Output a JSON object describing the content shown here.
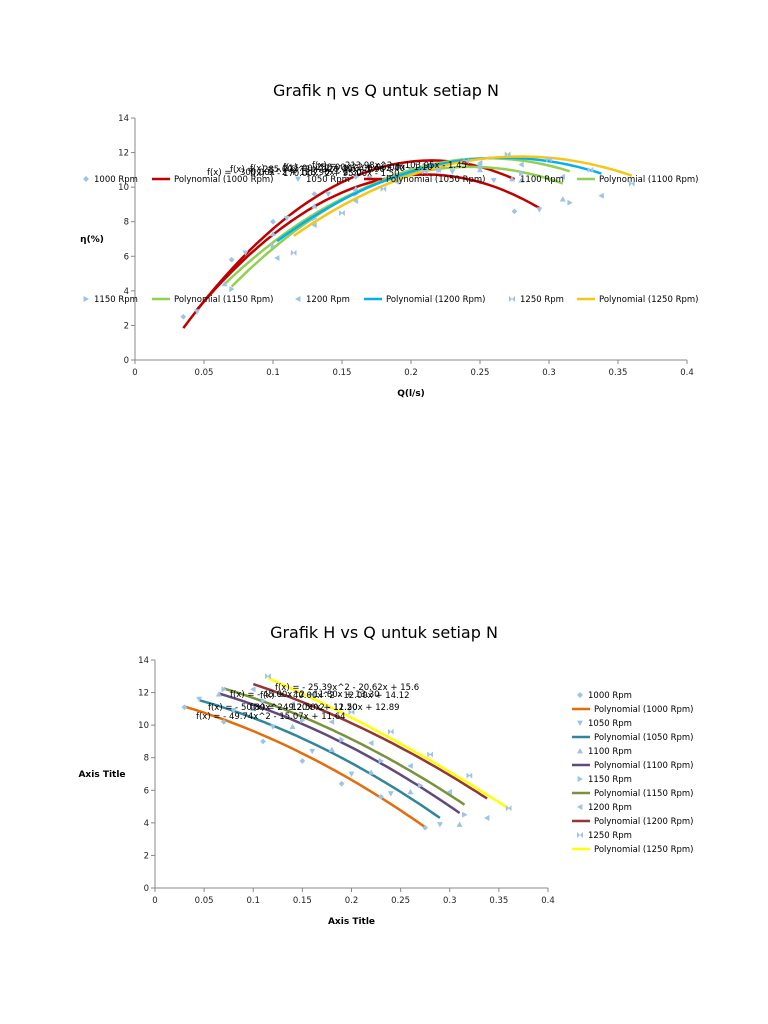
{
  "chart_data": [
    {
      "type": "scatter",
      "title": "Grafik η vs Q untuk setiap N",
      "xlabel": "Q(l/s)",
      "ylabel": "η(%)",
      "xlim": [
        0,
        0.4
      ],
      "ylim": [
        0,
        14
      ],
      "xticks": [
        "0",
        "0.05",
        "0.1",
        "0.15",
        "0.2",
        "0.25",
        "0.3",
        "0.35",
        "0.4"
      ],
      "yticks": [
        "0",
        "2",
        "4",
        "6",
        "8",
        "10",
        "12",
        "14"
      ],
      "grid": false,
      "legend": "inside-rows",
      "series": [
        {
          "name": "1000 Rpm",
          "trend": "Polynomial (1000 Rpm)",
          "color": "#c00000",
          "marker": "diamond",
          "x": [
            0.035,
            0.07,
            0.1,
            0.13,
            0.16,
            0.19,
            0.22,
            0.25,
            0.275
          ],
          "y": [
            2.5,
            5.8,
            8.0,
            9.6,
            10.6,
            11.1,
            11.0,
            10.3,
            8.6
          ],
          "fit": [
            -300.0,
            128.9,
            -2.3
          ]
        },
        {
          "name": "1050 Rpm",
          "trend": "Polynomial (1050 Rpm)",
          "color": "#c00000",
          "marker": "triangle-down",
          "x": [
            0.045,
            0.08,
            0.11,
            0.14,
            0.17,
            0.2,
            0.23,
            0.26,
            0.293
          ],
          "y": [
            2.8,
            6.2,
            8.2,
            9.6,
            10.5,
            11.0,
            10.9,
            10.4,
            8.7
          ],
          "fit": [
            -285.0,
            120.0,
            -1.9
          ]
        },
        {
          "name": "1100 Rpm",
          "trend": "Polynomial (1100 Rpm)",
          "color": "#92d050",
          "marker": "triangle-up",
          "x": [
            0.065,
            0.1,
            0.13,
            0.16,
            0.19,
            0.22,
            0.25,
            0.28,
            0.31
          ],
          "y": [
            4.4,
            7.3,
            8.9,
            9.9,
            10.7,
            11.1,
            11.0,
            10.4,
            9.3
          ],
          "fit": [
            -213.98,
            103.95,
            -1.45
          ]
        },
        {
          "name": "1150 Rpm",
          "trend": "Polynomial (1150 Rpm)",
          "color": "#92d050",
          "marker": "triangle-right",
          "x": [
            0.07,
            0.1,
            0.13,
            0.16,
            0.19,
            0.22,
            0.25,
            0.28,
            0.315
          ],
          "y": [
            4.1,
            6.6,
            8.2,
            9.6,
            10.5,
            11.0,
            11.2,
            10.8,
            9.1
          ],
          "fit": [
            -215.0,
            110.0,
            -2.4
          ]
        },
        {
          "name": "1200 Rpm",
          "trend": "Polynomial (1200 Rpm)",
          "color": "#00b0f0",
          "marker": "triangle-left",
          "x": [
            0.103,
            0.13,
            0.16,
            0.19,
            0.22,
            0.25,
            0.28,
            0.31,
            0.338
          ],
          "y": [
            5.9,
            7.8,
            9.2,
            10.3,
            11.0,
            11.4,
            11.3,
            10.6,
            9.5
          ],
          "fit": [
            -180.0,
            96.0,
            -1.1
          ]
        },
        {
          "name": "1250 Rpm",
          "trend": "Polynomial (1250 Rpm)",
          "color": "#f5c518",
          "marker": "bowtie",
          "x": [
            0.115,
            0.15,
            0.18,
            0.21,
            0.24,
            0.27,
            0.3,
            0.33,
            0.36
          ],
          "y": [
            6.2,
            8.5,
            9.9,
            10.9,
            11.5,
            11.9,
            11.6,
            11.0,
            10.2
          ],
          "fit": [
            -170.0,
            95.0,
            -1.5
          ]
        }
      ],
      "equations": [
        "f(x) = - 213.98x^2 + 103.95x - 1.45",
        "f(x) = - 300.00x^2 + 128.90x - 2.30",
        "f(x) = - 285.00x^2 + 120.00x - 1.90",
        "f(x) = - 215.00x^2 + 110.00x - 2.40",
        "f(x) = - 180.00x^2 + 96.00x - 1.10",
        "f(x) = - 170.00x^2 + 95.00x - 1.50"
      ]
    },
    {
      "type": "scatter",
      "title": "Grafik H vs Q untuk setiap N",
      "xlabel": "Axis Title",
      "ylabel": "Axis Title",
      "xlim": [
        0,
        0.4
      ],
      "ylim": [
        0,
        14
      ],
      "xticks": [
        "0",
        "0.05",
        "0.1",
        "0.15",
        "0.2",
        "0.25",
        "0.3",
        "0.35",
        "0.4"
      ],
      "yticks": [
        "0",
        "2",
        "4",
        "6",
        "8",
        "10",
        "12",
        "14"
      ],
      "grid": false,
      "legend": "right",
      "series": [
        {
          "name": "1000 Rpm",
          "trend": "Polynomial (1000 Rpm)",
          "color": "#e46c0a",
          "marker": "diamond",
          "x": [
            0.03,
            0.07,
            0.11,
            0.15,
            0.19,
            0.23,
            0.275
          ],
          "y": [
            11.1,
            10.2,
            9.0,
            7.8,
            6.4,
            5.6,
            3.7
          ],
          "fit": [
            -49.74,
            -15.07,
            11.64
          ]
        },
        {
          "name": "1050 Rpm",
          "trend": "Polynomial (1050 Rpm)",
          "color": "#31859c",
          "marker": "triangle-down",
          "x": [
            0.045,
            0.08,
            0.12,
            0.16,
            0.2,
            0.24,
            0.29
          ],
          "y": [
            11.6,
            10.9,
            9.9,
            8.4,
            7.0,
            5.8,
            3.9
          ],
          "fit": [
            -50.8,
            -12.5,
            12.2
          ]
        },
        {
          "name": "1100 Rpm",
          "trend": "Polynomial (1100 Rpm)",
          "color": "#604a7b",
          "marker": "triangle-up",
          "x": [
            0.065,
            0.1,
            0.14,
            0.18,
            0.22,
            0.26,
            0.31
          ],
          "y": [
            11.9,
            11.0,
            9.9,
            8.5,
            7.1,
            5.9,
            3.9
          ],
          "fit": [
            -49.2,
            -11.5,
            12.9
          ]
        },
        {
          "name": "1150 Rpm",
          "trend": "Polynomial (1150 Rpm)",
          "color": "#77933c",
          "marker": "triangle-right",
          "x": [
            0.07,
            0.11,
            0.15,
            0.19,
            0.23,
            0.27,
            0.315
          ],
          "y": [
            12.2,
            11.5,
            10.3,
            9.1,
            7.8,
            6.3,
            4.5
          ],
          "fit": [
            -45.0,
            -11.8,
            13.3
          ]
        },
        {
          "name": "1200 Rpm",
          "trend": "Polynomial (1200 Rpm)",
          "color": "#943634",
          "marker": "triangle-left",
          "x": [
            0.1,
            0.14,
            0.18,
            0.22,
            0.26,
            0.3,
            0.338
          ],
          "y": [
            12.2,
            11.3,
            10.2,
            8.9,
            7.5,
            5.9,
            4.3
          ],
          "fit": [
            -40.0,
            -12.0,
            14.12
          ]
        },
        {
          "name": "1250 Rpm",
          "trend": "Polynomial (1250 Rpm)",
          "color": "#ffff00",
          "marker": "bowtie",
          "x": [
            0.115,
            0.16,
            0.2,
            0.24,
            0.28,
            0.32,
            0.36
          ],
          "y": [
            13.0,
            11.9,
            10.8,
            9.6,
            8.2,
            6.9,
            4.9
          ],
          "fit": [
            -25.39,
            -20.62,
            15.6
          ]
        }
      ],
      "equations": [
        "f(x) = - 25.39x^2 - 20.62x + 15.6",
        "f(x) = - 40.00x^2 - 12.00x + 14.12",
        "f(x) = - 45.00x^2 - 11.80x + 13.30",
        "f(x) = - 49.20x^2 - 11.50x + 12.89",
        "f(x) = - 50.80x^2 - 12.50x + 12.20",
        "f(x) = - 49.74x^2 - 15.07x + 11.64"
      ]
    }
  ]
}
